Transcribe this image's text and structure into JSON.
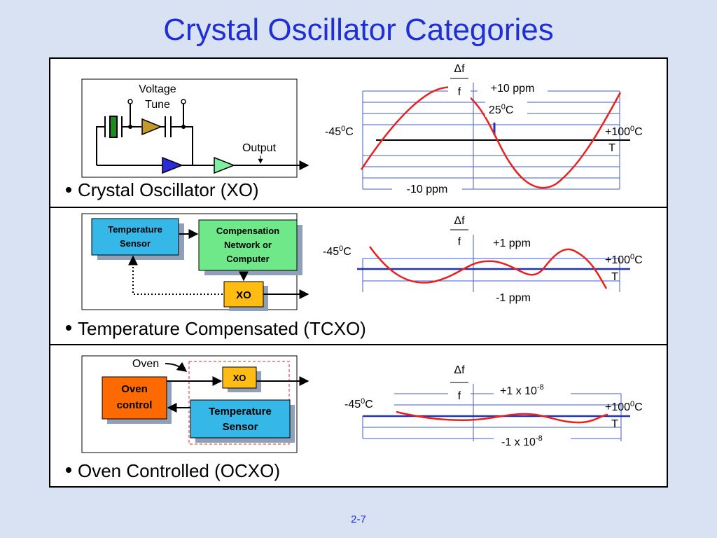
{
  "title": "Crystal Oscillator Categories",
  "page_number": "2-7",
  "colors": {
    "title": "#1f2fd6",
    "background": "#d9e2f3",
    "curve": "#e8211d",
    "axis_line": "#2233bb",
    "grid": "#3f5ae0",
    "sensor_box": "#35b7e8",
    "comp_box": "#6ee888",
    "xo_box": "#ffbd14",
    "oven_box": "#ff6a00",
    "shadow_box": "#8fa0b8"
  },
  "xo": {
    "bullet": "Crystal Oscillator (XO)",
    "voltage_tune": [
      "Voltage",
      "Tune"
    ],
    "output_label": "Output",
    "df_num": "Δf",
    "df_den": "f",
    "plus": "+10 ppm",
    "minus": "-10 ppm",
    "t25": "25",
    "t25_suffix": "C",
    "tmin": "-45",
    "tmin_suffix": "C",
    "tmax": "+100",
    "tmax_suffix": "C",
    "t_axis": "T",
    "degree_mark": "0"
  },
  "tcxo": {
    "bullet": "Temperature Compensated (TCXO)",
    "sensor": [
      "Temperature",
      "Sensor"
    ],
    "comp": [
      "Compensation",
      "Network or",
      "Computer"
    ],
    "xo_box": "XO",
    "df_num": "Δf",
    "df_den": "f",
    "plus": "+1 ppm",
    "minus": "-1 ppm",
    "tmin": "-45",
    "tmin_suffix": "C",
    "tmax": "+100",
    "tmax_suffix": "C",
    "t_axis": "T",
    "degree_mark": "0"
  },
  "ocxo": {
    "bullet": "Oven Controlled (OCXO)",
    "oven_label": "Oven",
    "oven_control": [
      "Oven",
      "control"
    ],
    "xo_box": "XO",
    "sensor": [
      "Temperature",
      "Sensor"
    ],
    "df_num": "Δf",
    "df_den": "f",
    "plus_base": "+1 x 10",
    "minus_base": "-1 x 10",
    "exponent": "-8",
    "tmin": "-45",
    "tmin_suffix": "C",
    "tmax": "+100",
    "tmax_suffix": "C",
    "t_axis": "T",
    "degree_mark": "0"
  }
}
